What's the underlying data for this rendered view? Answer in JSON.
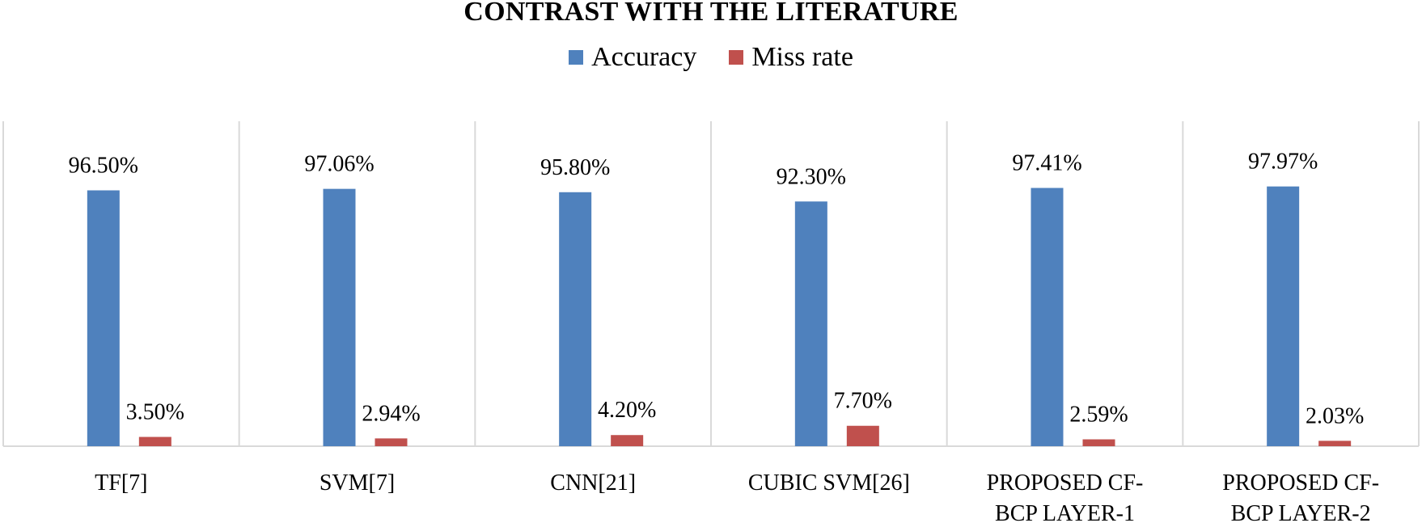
{
  "chart_data": {
    "type": "bar",
    "title": "CONTRAST WITH THE LITERATURE",
    "categories": [
      [
        "TF[7]"
      ],
      [
        "SVM[7]"
      ],
      [
        "CNN[21]"
      ],
      [
        "CUBIC SVM[26]"
      ],
      [
        "PROPOSED CF-",
        "BCP LAYER-1"
      ],
      [
        "PROPOSED CF-",
        "BCP LAYER-2"
      ]
    ],
    "series": [
      {
        "name": "Accuracy",
        "color": "#4f81bd",
        "values": [
          96.5,
          97.06,
          95.8,
          92.3,
          97.41,
          97.97
        ],
        "labels": [
          "96.50%",
          "97.06%",
          "95.80%",
          "92.30%",
          "97.41%",
          "97.97%"
        ]
      },
      {
        "name": "Miss rate",
        "color": "#c0504d",
        "values": [
          3.5,
          2.94,
          4.2,
          7.7,
          2.59,
          2.03
        ],
        "labels": [
          "3.50%",
          "2.94%",
          "4.20%",
          "7.70%",
          "2.59%",
          "2.03%"
        ]
      }
    ],
    "ylim": [
      0,
      100
    ],
    "xlabel": "",
    "ylabel": "",
    "grid": "vertical category separators",
    "legend_position": "top"
  }
}
